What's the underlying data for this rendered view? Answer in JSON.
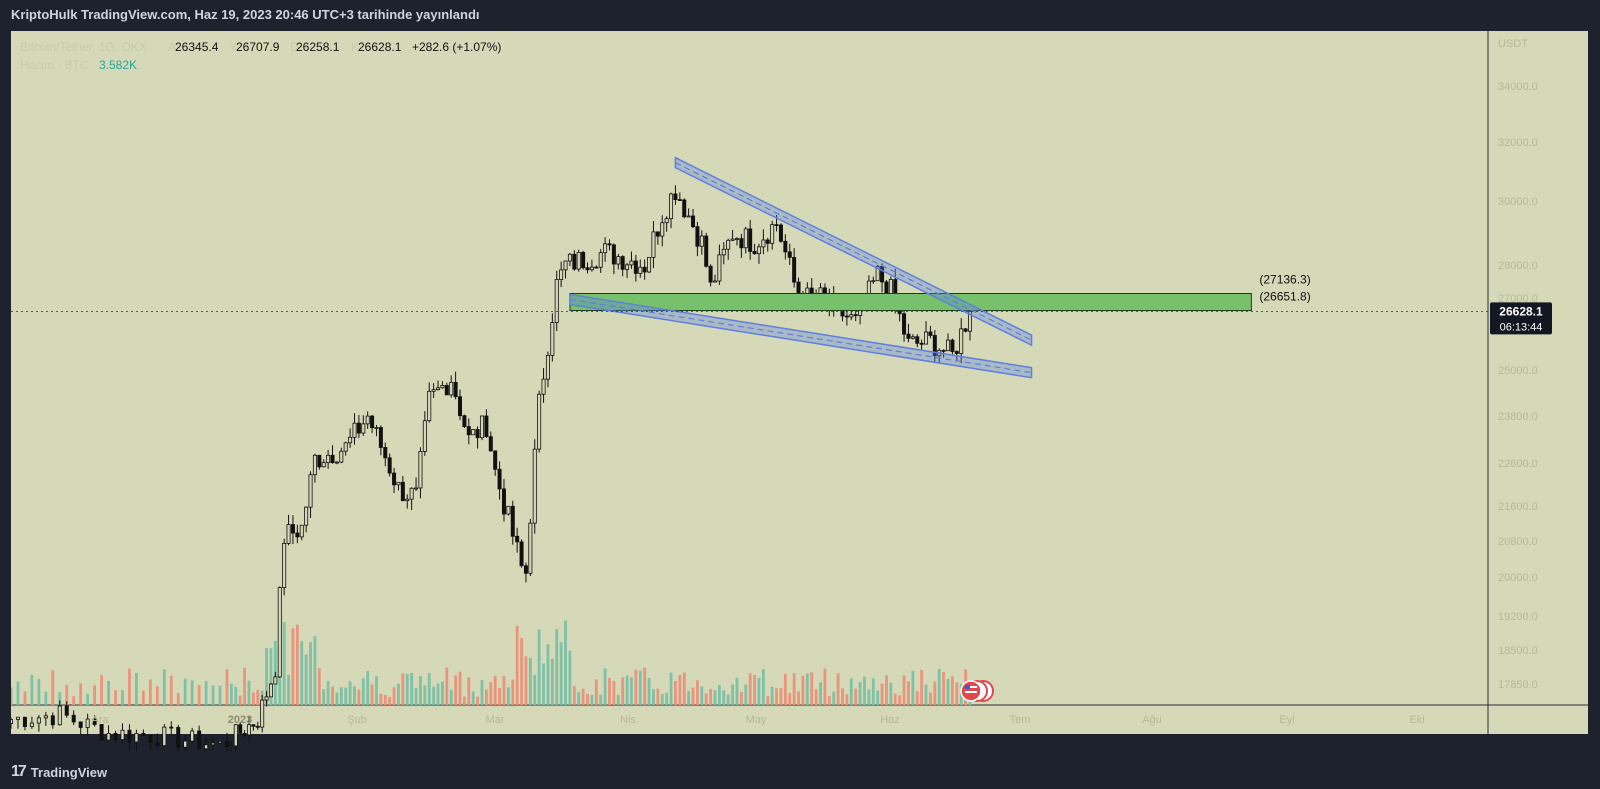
{
  "header": {
    "title": "KriptoHulk TradingView.com, Haz 19, 2023 20:46 UTC+3 tarihinde yayınlandı"
  },
  "footer": {
    "brand": "TradingView",
    "logo_icon": "tradingview-logo-icon"
  },
  "legend": {
    "symbol": "Bitcoin/Tether, 1G, OKX",
    "open_label": "A",
    "open": "26345.4",
    "high_label": "Y",
    "high": "26707.9",
    "low_label": "D",
    "low": "26258.1",
    "close_label": "K",
    "close": "26628.1",
    "change": "+282.6 (+1.07%)",
    "volume_label": "Hacim · BTC",
    "volume": "3.582K"
  },
  "colors": {
    "background": "#d5d9b8",
    "up": "#26a69a",
    "down": "#111111",
    "vol_up": "#7fc1a6",
    "vol_down": "#e8957c",
    "zone": "#77c06c",
    "channel": "#5d7fe0",
    "price_tag_bg": "#131722",
    "tag_bg": "#1e222d"
  },
  "chart_data": {
    "type": "candlestick",
    "title": "Bitcoin/Tether, 1G, OKX",
    "y_axis_unit": "USDT",
    "y_ticks": [
      34000.0,
      32000.0,
      30000.0,
      28000.0,
      27000.0,
      25000.0,
      23800.0,
      22600.0,
      21600.0,
      20800.0,
      20000.0,
      19200.0,
      18500.0,
      17850.0
    ],
    "x_ticks": [
      "Ara",
      "2023",
      "Şub",
      "Mar",
      "Nis",
      "May",
      "Haz",
      "Tem",
      "Ağu",
      "Eyl",
      "Eki"
    ],
    "last_price": "26628.1",
    "countdown": "06:13:44",
    "zone": {
      "top_label": "(27136.3)",
      "bottom_label": "(26651.8)",
      "top": 27136.3,
      "bottom": 26651.8,
      "start": "2023-03-20",
      "end": "2023-08-22"
    },
    "channel_upper": {
      "start": [
        "2023-04-13",
        31300
      ],
      "end": [
        "2023-07-03",
        25830
      ]
    },
    "channel_lower": {
      "start": [
        "2023-03-20",
        26960
      ],
      "end": [
        "2023-07-03",
        24930
      ]
    },
    "candle_anchors": [
      [
        "2022-12-01",
        17100
      ],
      [
        "2022-12-08",
        17200
      ],
      [
        "2022-12-15",
        16800
      ],
      [
        "2022-12-22",
        16750
      ],
      [
        "2022-12-31",
        16550
      ],
      [
        "2023-01-08",
        17100
      ],
      [
        "2023-01-12",
        18200
      ],
      [
        "2023-01-14",
        20900
      ],
      [
        "2023-01-18",
        21100
      ],
      [
        "2023-01-21",
        22700
      ],
      [
        "2023-01-28",
        23000
      ],
      [
        "2023-02-02",
        23800
      ],
      [
        "2023-02-09",
        22000
      ],
      [
        "2023-02-13",
        21800
      ],
      [
        "2023-02-16",
        24200
      ],
      [
        "2023-02-21",
        24800
      ],
      [
        "2023-02-25",
        23200
      ],
      [
        "2023-03-01",
        23600
      ],
      [
        "2023-03-03",
        22400
      ],
      [
        "2023-03-09",
        20200
      ],
      [
        "2023-03-10",
        20100
      ],
      [
        "2023-03-13",
        24100
      ],
      [
        "2023-03-17",
        27400
      ],
      [
        "2023-03-19",
        28000
      ],
      [
        "2023-03-28",
        28400
      ],
      [
        "2023-04-06",
        28000
      ],
      [
        "2023-04-10",
        29600
      ],
      [
        "2023-04-13",
        30400
      ],
      [
        "2023-04-19",
        28700
      ],
      [
        "2023-04-21",
        27300
      ],
      [
        "2023-04-26",
        29000
      ],
      [
        "2023-05-01",
        28700
      ],
      [
        "2023-05-06",
        29300
      ],
      [
        "2023-05-11",
        27000
      ],
      [
        "2023-05-16",
        27000
      ],
      [
        "2023-05-24",
        26300
      ],
      [
        "2023-05-29",
        27700
      ],
      [
        "2023-06-01",
        27200
      ],
      [
        "2023-06-05",
        25700
      ],
      [
        "2023-06-10",
        25800
      ],
      [
        "2023-06-15",
        25400
      ],
      [
        "2023-06-19",
        26628
      ]
    ]
  }
}
